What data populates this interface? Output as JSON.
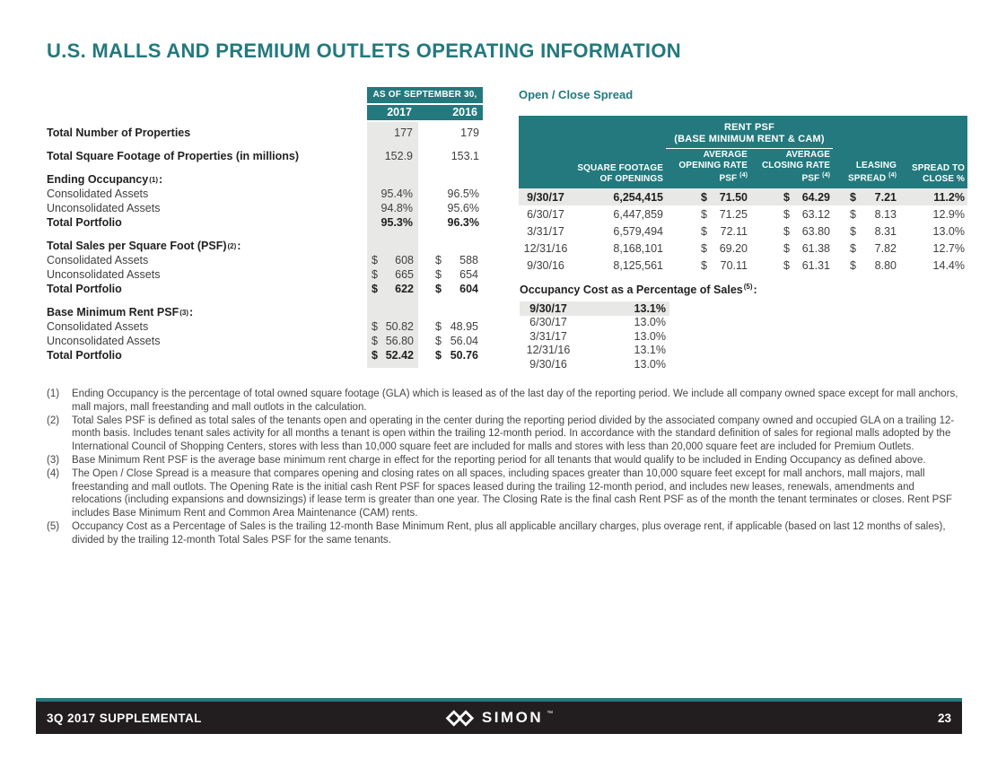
{
  "page": {
    "title": "U.S. MALLS AND PREMIUM OUTLETS OPERATING INFORMATION"
  },
  "currency_symbol": "$",
  "colors": {
    "teal": "#23797d",
    "shade": "#e8e8e7",
    "footer_bg": "#221e1f"
  },
  "left_table": {
    "header": {
      "title": "AS OF SEPTEMBER 30,",
      "col1": "2017",
      "col2": "2016"
    },
    "sections": [
      {
        "header": null,
        "dollar": false,
        "rows": [
          {
            "label": "Total Number of Properties",
            "bold_label": true,
            "bold_values": false,
            "v1": "177",
            "v2": "179"
          }
        ]
      },
      {
        "header": null,
        "dollar": false,
        "rows": [
          {
            "label": "Total Square Footage of Properties (in millions)",
            "bold_label": true,
            "bold_values": false,
            "v1": "152.9",
            "v2": "153.1"
          }
        ]
      },
      {
        "header": {
          "label": "Ending Occupancy",
          "sup": "(1)",
          "suffix": ":"
        },
        "dollar": false,
        "rows": [
          {
            "label": "Consolidated Assets",
            "bold_label": false,
            "bold_values": false,
            "v1": "95.4%",
            "v2": "96.5%"
          },
          {
            "label": "Unconsolidated Assets",
            "bold_label": false,
            "bold_values": false,
            "v1": "94.8%",
            "v2": "95.6%"
          },
          {
            "label": "Total Portfolio",
            "bold_label": true,
            "bold_values": true,
            "v1": "95.3%",
            "v2": "96.3%"
          }
        ]
      },
      {
        "header": {
          "label": "Total Sales per Square Foot (PSF)",
          "sup": "(2)",
          "suffix": ":"
        },
        "dollar": true,
        "rows": [
          {
            "label": "Consolidated Assets",
            "bold_label": false,
            "bold_values": false,
            "v1": "608",
            "v2": "588"
          },
          {
            "label": "Unconsolidated Assets",
            "bold_label": false,
            "bold_values": false,
            "v1": "665",
            "v2": "654"
          },
          {
            "label": "Total Portfolio",
            "bold_label": true,
            "bold_values": true,
            "v1": "622",
            "v2": "604"
          }
        ]
      },
      {
        "header": {
          "label": "Base Minimum Rent PSF",
          "sup": "(3)",
          "suffix": ":"
        },
        "dollar": true,
        "rows": [
          {
            "label": "Consolidated Assets",
            "bold_label": false,
            "bold_values": false,
            "v1": "50.82",
            "v2": "48.95"
          },
          {
            "label": "Unconsolidated Assets",
            "bold_label": false,
            "bold_values": false,
            "v1": "56.80",
            "v2": "56.04"
          },
          {
            "label": "Total Portfolio",
            "bold_label": true,
            "bold_values": true,
            "v1": "52.42",
            "v2": "50.76"
          }
        ]
      }
    ]
  },
  "open_close": {
    "title": "Open / Close Spread",
    "group_header_line1": "RENT PSF",
    "group_header_line2": "(BASE MINIMUM RENT & CAM)",
    "columns": [
      {
        "lines": [
          "SQUARE FOOTAGE",
          "OF OPENINGS"
        ]
      },
      {
        "lines": [
          "AVERAGE",
          "OPENING RATE",
          "PSF"
        ],
        "sup": "(4)"
      },
      {
        "lines": [
          "AVERAGE",
          "CLOSING RATE",
          "PSF"
        ],
        "sup": "(4)"
      },
      {
        "lines": [
          "LEASING",
          "SPREAD"
        ],
        "sup": "(4)"
      },
      {
        "lines": [
          "SPREAD TO",
          "CLOSE %"
        ]
      }
    ],
    "rows": [
      {
        "date": "9/30/17",
        "square_footage": "6,254,415",
        "opening_rate": "71.50",
        "closing_rate": "64.29",
        "leasing_spread": "7.21",
        "spread_to_close": "11.2%",
        "highlight": true
      },
      {
        "date": "6/30/17",
        "square_footage": "6,447,859",
        "opening_rate": "71.25",
        "closing_rate": "63.12",
        "leasing_spread": "8.13",
        "spread_to_close": "12.9%",
        "highlight": false
      },
      {
        "date": "3/31/17",
        "square_footage": "6,579,494",
        "opening_rate": "72.11",
        "closing_rate": "63.80",
        "leasing_spread": "8.31",
        "spread_to_close": "13.0%",
        "highlight": false
      },
      {
        "date": "12/31/16",
        "square_footage": "8,168,101",
        "opening_rate": "69.20",
        "closing_rate": "61.38",
        "leasing_spread": "7.82",
        "spread_to_close": "12.7%",
        "highlight": false
      },
      {
        "date": "9/30/16",
        "square_footage": "8,125,561",
        "opening_rate": "70.11",
        "closing_rate": "61.31",
        "leasing_spread": "8.80",
        "spread_to_close": "14.4%",
        "highlight": false
      }
    ]
  },
  "occupancy_cost": {
    "title": "Occupancy Cost as a Percentage of Sales",
    "sup": "(5)",
    "suffix": ":",
    "rows": [
      {
        "date": "9/30/17",
        "value": "13.1%",
        "highlight": true
      },
      {
        "date": "6/30/17",
        "value": "13.0%",
        "highlight": false
      },
      {
        "date": "3/31/17",
        "value": "13.0%",
        "highlight": false
      },
      {
        "date": "12/31/16",
        "value": "13.1%",
        "highlight": false
      },
      {
        "date": "9/30/16",
        "value": "13.0%",
        "highlight": false
      }
    ]
  },
  "footnotes": [
    {
      "num": "(1)",
      "text": "Ending Occupancy is the percentage of total owned square footage (GLA) which is leased as of the last day of the reporting period. We include all company owned space except for mall anchors, mall majors, mall freestanding and mall outlots in the calculation."
    },
    {
      "num": "(2)",
      "text": "Total Sales PSF is defined as total sales of the tenants open and operating in the center during the reporting period divided by the associated company owned and occupied GLA on a trailing 12-month basis. Includes tenant sales activity for all months a tenant is open within the trailing 12-month period. In accordance with the standard definition of sales for regional malls adopted by the International Council of Shopping Centers, stores with less than 10,000 square feet are included for malls and stores with less than 20,000 square feet are included for Premium Outlets."
    },
    {
      "num": "(3)",
      "text": "Base Minimum Rent PSF is the average base minimum rent charge in effect for the reporting period for all tenants that would qualify to be included in Ending Occupancy as defined above."
    },
    {
      "num": "(4)",
      "text": "The Open / Close Spread is a measure that compares opening and closing rates on all spaces, including spaces greater than 10,000 square feet except for mall anchors, mall majors, mall freestanding and mall outlots. The Opening Rate is the initial cash Rent PSF for spaces leased during the trailing 12-month period, and includes new leases, renewals, amendments and relocations (including expansions and downsizings) if lease term is greater than one year. The Closing Rate is the final cash Rent PSF as of the month the tenant terminates or closes. Rent PSF includes Base Minimum Rent and Common Area Maintenance (CAM) rents."
    },
    {
      "num": "(5)",
      "text": "Occupancy Cost as a Percentage of Sales is the trailing 12-month Base Minimum Rent, plus all applicable ancillary charges, plus overage rent, if applicable (based on last 12 months of sales), divided by the trailing 12-month Total Sales PSF for the same tenants."
    }
  ],
  "footer": {
    "left": "3Q 2017 SUPPLEMENTAL",
    "brand": "SIMON",
    "tm": "™",
    "page": "23"
  }
}
